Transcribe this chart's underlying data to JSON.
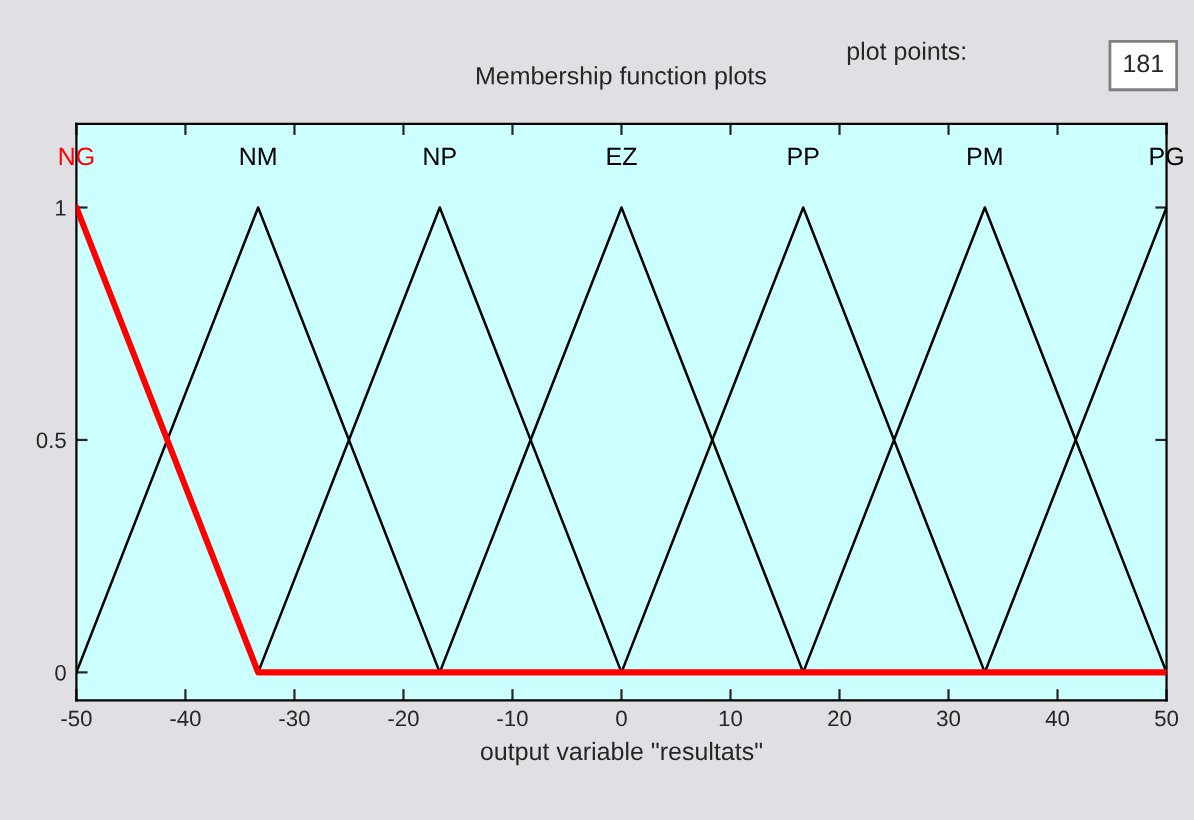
{
  "chart_data": {
    "type": "line",
    "title": "Membership function plots",
    "xlabel": "output variable \"resultats\"",
    "annotations": [
      "plot points:",
      "181"
    ],
    "xlim": [
      -50,
      50
    ],
    "xticks": [
      -50,
      -40,
      -30,
      -20,
      -10,
      0,
      10,
      20,
      30,
      40,
      50
    ],
    "ylim": [
      -0.06,
      1.18
    ],
    "yticks": [
      0,
      0.5,
      1
    ],
    "grid": false,
    "legend": false,
    "marker": "none",
    "line_style": "solid",
    "series": [
      {
        "name": "NG",
        "color": "#ff0000",
        "x": [
          -50,
          -33.33,
          50
        ],
        "values": [
          1,
          0,
          0
        ]
      },
      {
        "name": "NM",
        "color": "#000000",
        "x": [
          -50,
          -33.33,
          -16.67
        ],
        "values": [
          0,
          1,
          0
        ]
      },
      {
        "name": "NP",
        "color": "#000000",
        "x": [
          -33.33,
          -16.67,
          0
        ],
        "values": [
          0,
          1,
          0
        ]
      },
      {
        "name": "EZ",
        "color": "#000000",
        "x": [
          -16.67,
          0,
          16.67
        ],
        "values": [
          0,
          1,
          0
        ]
      },
      {
        "name": "PP",
        "color": "#000000",
        "x": [
          0,
          16.67,
          33.33
        ],
        "values": [
          0,
          1,
          0
        ]
      },
      {
        "name": "PM",
        "color": "#000000",
        "x": [
          16.67,
          33.33,
          50
        ],
        "values": [
          0,
          1,
          0
        ]
      },
      {
        "name": "PG",
        "color": "#000000",
        "x": [
          33.33,
          50
        ],
        "values": [
          0,
          1
        ]
      }
    ]
  }
}
